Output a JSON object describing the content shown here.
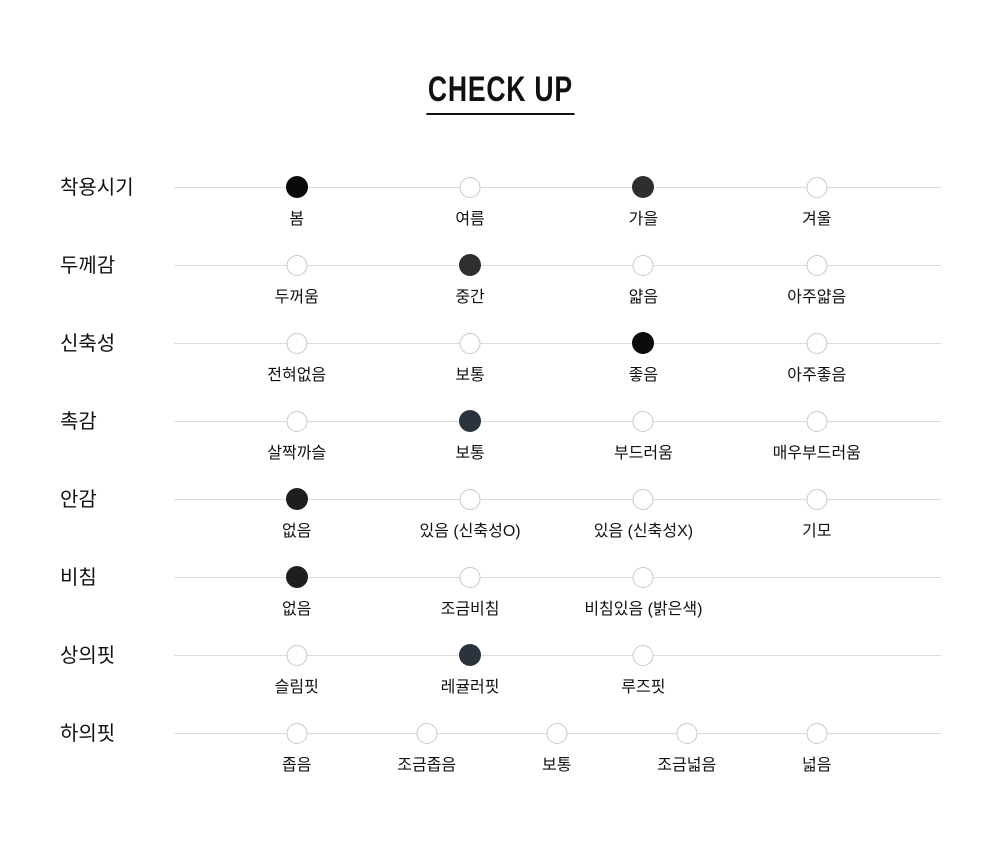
{
  "title": "CHECK UP",
  "colors": {
    "text": "#111111",
    "title_underline": "#111111",
    "scale_line": "#dcdcdc",
    "dot_border": "#c9c9c9",
    "dot_fill_black": "#0a0a0a",
    "dot_fill_charcoal": "#2e2e2e",
    "dot_fill_navy": "#2b333d"
  },
  "rows": [
    {
      "label": "착용시기",
      "options": [
        "봄",
        "여름",
        "가을",
        "겨울"
      ],
      "selected": [
        {
          "index": 0,
          "color": "#0a0a0a"
        },
        {
          "index": 2,
          "color": "#2e2e2e"
        }
      ]
    },
    {
      "label": "두께감",
      "options": [
        "두꺼움",
        "중간",
        "얇음",
        "아주얇음"
      ],
      "selected": [
        {
          "index": 1,
          "color": "#2f2f2f"
        }
      ]
    },
    {
      "label": "신축성",
      "options": [
        "전혀없음",
        "보통",
        "좋음",
        "아주좋음"
      ],
      "selected": [
        {
          "index": 2,
          "color": "#0c0c0c"
        }
      ]
    },
    {
      "label": "촉감",
      "options": [
        "살짝까슬",
        "보통",
        "부드러움",
        "매우부드러움"
      ],
      "selected": [
        {
          "index": 1,
          "color": "#2b333d"
        }
      ]
    },
    {
      "label": "안감",
      "options": [
        "없음",
        "있음 (신축성O)",
        "있음 (신축성X)",
        "기모"
      ],
      "selected": [
        {
          "index": 0,
          "color": "#1e1e1e"
        }
      ]
    },
    {
      "label": "비침",
      "options": [
        "없음",
        "조금비침",
        "비침있음 (밝은색)"
      ],
      "selected": [
        {
          "index": 0,
          "color": "#1e1e1e"
        }
      ]
    },
    {
      "label": "상의핏",
      "options": [
        "슬림핏",
        "레귤러핏",
        "루즈핏"
      ],
      "selected": [
        {
          "index": 1,
          "color": "#2b333d"
        }
      ]
    },
    {
      "label": "하의핏",
      "options": [
        "좁음",
        "조금좁음",
        "보통",
        "조금넓음",
        "넓음"
      ],
      "selected": []
    }
  ]
}
